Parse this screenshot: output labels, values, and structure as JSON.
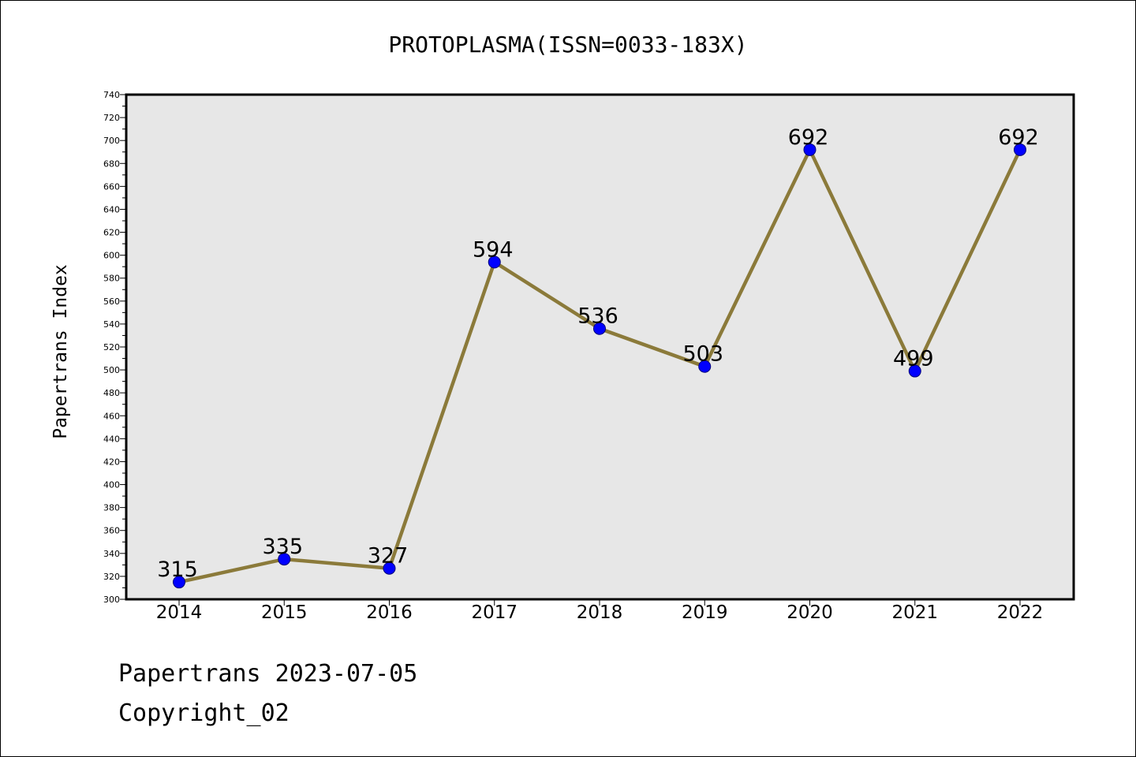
{
  "chart_data": {
    "type": "line",
    "title": "PROTOPLASMA(ISSN=0033-183X)",
    "ylabel": "Papertrans Index",
    "xlabel": "",
    "categories": [
      "2014",
      "2015",
      "2016",
      "2017",
      "2018",
      "2019",
      "2020",
      "2021",
      "2022"
    ],
    "values": [
      315,
      335,
      327,
      594,
      536,
      503,
      692,
      499,
      692
    ],
    "data_labels": [
      "315",
      "335",
      "327",
      "594",
      "536",
      "503",
      "692",
      "499",
      "692"
    ],
    "ylim": [
      300,
      740
    ],
    "yticks": [
      "300",
      "320",
      "340",
      "360",
      "380",
      "400",
      "420",
      "440",
      "460",
      "480",
      "500",
      "520",
      "540",
      "560",
      "580",
      "600",
      "620",
      "640",
      "660",
      "680",
      "700",
      "720",
      "740"
    ],
    "grid": false,
    "colors": {
      "line": "#8B7A3A",
      "marker": "#0000FF",
      "plot_bg": "#E7E7E7"
    }
  },
  "footer": {
    "line1": "Papertrans 2023-07-05",
    "line2": "Copyright_02"
  }
}
